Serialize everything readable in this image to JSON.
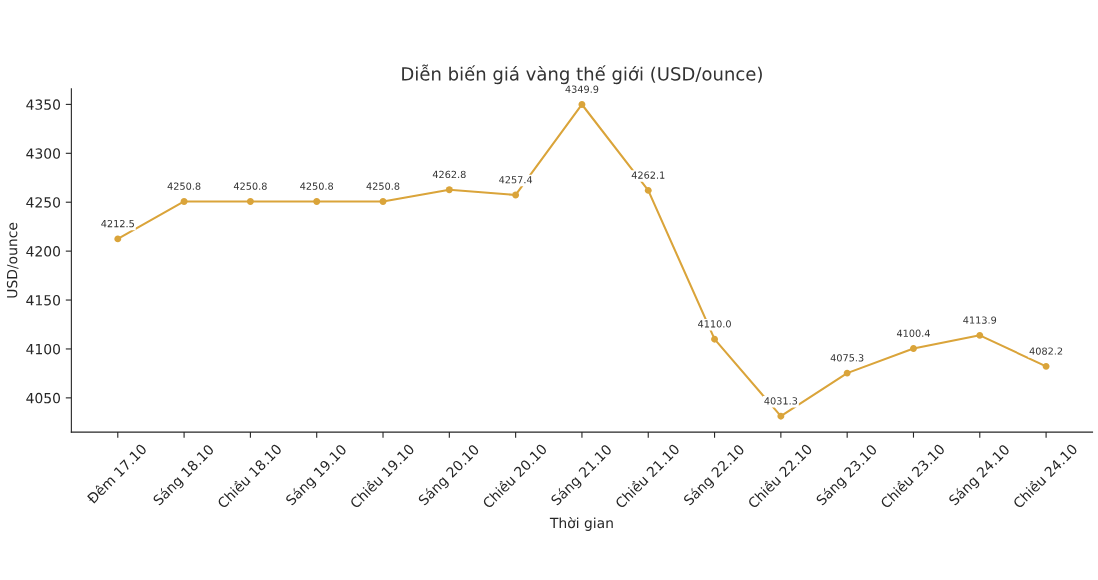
{
  "chart_data": {
    "type": "line",
    "title": "Diễn biến giá vàng thế giới (USD/ounce)",
    "xlabel": "Thời gian",
    "ylabel": "USD/ounce",
    "categories": [
      "Đêm 17.10",
      "Sáng 18.10",
      "Chiều 18.10",
      "Sáng 19.10",
      "Chiều 19.10",
      "Sáng 20.10",
      "Chiều 20.10",
      "Sáng 21.10",
      "Chiều 21.10",
      "Sáng 22.10",
      "Chiều 22.10",
      "Sáng 23.10",
      "Chiều 23.10",
      "Sáng 24.10",
      "Chiều 24.10"
    ],
    "series": [
      {
        "color": "#daa43a",
        "values": [
          4212.5,
          4250.8,
          4250.8,
          4250.8,
          4250.8,
          4262.8,
          4257.4,
          4349.9,
          4262.1,
          4110.0,
          4031.3,
          4075.3,
          4100.4,
          4113.9,
          4082.2
        ],
        "value_labels": [
          "4212.5",
          "4250.8",
          "4250.8",
          "4250.8",
          "4250.8",
          "4262.8",
          "4257.4",
          "4349.9",
          "4262.1",
          "4110.0",
          "4031.3",
          "4075.3",
          "4100.4",
          "4113.9",
          "4082.2"
        ]
      }
    ],
    "ylim": [
      4015,
      4366
    ],
    "yticks": [
      4050,
      4100,
      4150,
      4200,
      4250,
      4300,
      4350
    ],
    "marker": "circle",
    "line_style": "solid",
    "grid": false,
    "legend": false
  }
}
